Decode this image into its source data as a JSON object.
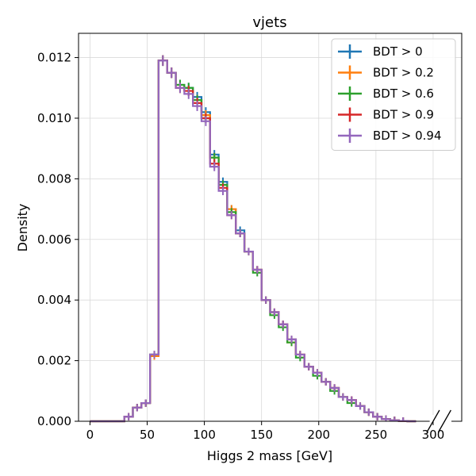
{
  "chart_data": {
    "type": "line",
    "title": "vjets",
    "xlabel": "Higgs 2 mass [GeV]",
    "ylabel": "Density",
    "xlim": [
      -10,
      325
    ],
    "ylim": [
      0,
      0.0128
    ],
    "x_axis_break": true,
    "x_ticks": [
      0,
      50,
      100,
      150,
      200,
      250,
      300
    ],
    "x_tick_labels": [
      "0",
      "50",
      "100",
      "150",
      "200",
      "250",
      "300"
    ],
    "y_ticks": [
      0,
      0.002,
      0.004,
      0.006,
      0.008,
      0.01,
      0.012
    ],
    "y_tick_labels": [
      "0.000",
      "0.002",
      "0.004",
      "0.006",
      "0.008",
      "0.010",
      "0.012"
    ],
    "grid": true,
    "legend_position": "top-right",
    "bin_edges": [
      0,
      10,
      20,
      30,
      37.5,
      45,
      52.5,
      60,
      67.5,
      75,
      82.5,
      90,
      97.5,
      105,
      112.5,
      120,
      127.5,
      135,
      142.5,
      150,
      157.5,
      165,
      172.5,
      180,
      187.5,
      195,
      202.5,
      210,
      217.5,
      225,
      232.5,
      240,
      247.5,
      255,
      262.5,
      270,
      277.5,
      285
    ],
    "series": [
      {
        "name": "BDT > 0",
        "color": "#1f77b4",
        "values": [
          0,
          0,
          0,
          0.00015,
          0.00045,
          0.0006,
          0.0022,
          0.0119,
          0.0115,
          0.0111,
          0.011,
          0.0107,
          0.0102,
          0.0088,
          0.0079,
          0.007,
          0.0063,
          0.0056,
          0.005,
          0.004,
          0.0036,
          0.0032,
          0.0027,
          0.0022,
          0.0018,
          0.0016,
          0.0013,
          0.0011,
          0.0008,
          0.0007,
          0.0005,
          0.0003,
          0.00015,
          7e-05,
          3e-05,
          1e-05,
          0
        ]
      },
      {
        "name": "BDT > 0.2",
        "color": "#ff7f0e",
        "values": [
          0,
          0,
          0,
          0.00015,
          0.00045,
          0.0006,
          0.00215,
          0.0119,
          0.0115,
          0.011,
          0.0109,
          0.0106,
          0.0101,
          0.0087,
          0.0078,
          0.007,
          0.0062,
          0.0056,
          0.005,
          0.004,
          0.0036,
          0.0032,
          0.0026,
          0.0022,
          0.0018,
          0.0016,
          0.0013,
          0.0011,
          0.0008,
          0.0007,
          0.0005,
          0.0003,
          0.00015,
          7e-05,
          3e-05,
          1e-05,
          0
        ]
      },
      {
        "name": "BDT > 0.6",
        "color": "#2ca02c",
        "values": [
          0,
          0,
          0,
          0.00015,
          0.00045,
          0.0006,
          0.0022,
          0.0119,
          0.0115,
          0.0111,
          0.011,
          0.0106,
          0.01,
          0.0087,
          0.0078,
          0.0069,
          0.0062,
          0.0056,
          0.0049,
          0.004,
          0.0035,
          0.0031,
          0.0026,
          0.0021,
          0.0018,
          0.0015,
          0.0013,
          0.001,
          0.0008,
          0.0006,
          0.0005,
          0.0003,
          0.00015,
          7e-05,
          3e-05,
          1e-05,
          0
        ]
      },
      {
        "name": "BDT > 0.9",
        "color": "#d62728",
        "values": [
          0,
          0,
          0,
          0.00015,
          0.00045,
          0.0006,
          0.0022,
          0.0119,
          0.0115,
          0.011,
          0.0109,
          0.0105,
          0.01,
          0.0085,
          0.0077,
          0.0068,
          0.0062,
          0.0056,
          0.005,
          0.004,
          0.0036,
          0.0032,
          0.0027,
          0.0022,
          0.0018,
          0.0016,
          0.0013,
          0.0011,
          0.0008,
          0.0007,
          0.0005,
          0.0003,
          0.00015,
          7e-05,
          3e-05,
          1e-05,
          0
        ]
      },
      {
        "name": "BDT > 0.94",
        "color": "#9467bd",
        "values": [
          0,
          0,
          0,
          0.00015,
          0.00045,
          0.0006,
          0.0022,
          0.0119,
          0.0115,
          0.011,
          0.0108,
          0.0104,
          0.0099,
          0.0084,
          0.0076,
          0.0068,
          0.0062,
          0.0056,
          0.005,
          0.004,
          0.0036,
          0.0032,
          0.0027,
          0.0022,
          0.0018,
          0.0016,
          0.0013,
          0.0011,
          0.0008,
          0.0007,
          0.0005,
          0.0003,
          0.00015,
          7e-05,
          3e-05,
          1e-05,
          0
        ]
      }
    ]
  }
}
